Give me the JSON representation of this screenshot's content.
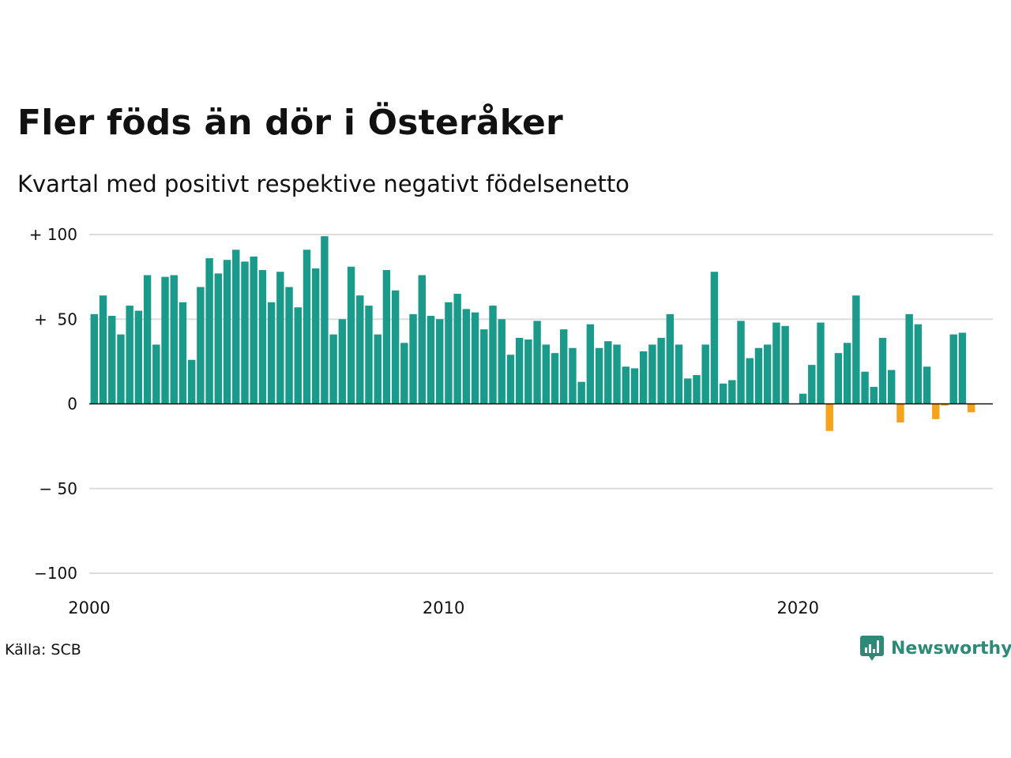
{
  "title": "Fler föds än dör i Österåker",
  "subtitle": "Kvartal med positivt respektive negativt födelsenetto",
  "source": "Källa: SCB",
  "brand": "Newsworthy",
  "colors": {
    "positive": "#1a9a8a",
    "negative": "#f5a31a",
    "grid": "#dddddd",
    "brand": "#2e8a78"
  },
  "chart_data": {
    "type": "bar",
    "title": "Fler föds än dör i Österåker",
    "subtitle": "Kvartal med positivt respektive negativt födelsenetto",
    "xlabel": "",
    "ylabel": "",
    "ylim": [
      -100,
      100
    ],
    "xlim": [
      2000,
      2025.5
    ],
    "grid": true,
    "y_ticks": [
      {
        "value": 100,
        "label": "+ 100"
      },
      {
        "value": 50,
        "label": "+  50"
      },
      {
        "value": 0,
        "label": "0"
      },
      {
        "value": -50,
        "label": "− 50"
      },
      {
        "value": -100,
        "label": "−100"
      }
    ],
    "x_ticks": [
      {
        "value": 2000,
        "label": "2000"
      },
      {
        "value": 2010,
        "label": "2010"
      },
      {
        "value": 2020,
        "label": "2020"
      }
    ],
    "start_year": 2000,
    "periods_per_year": 4,
    "values": [
      53,
      64,
      52,
      41,
      58,
      55,
      76,
      35,
      75,
      76,
      60,
      26,
      69,
      86,
      77,
      85,
      91,
      84,
      87,
      79,
      60,
      78,
      69,
      57,
      91,
      80,
      99,
      41,
      50,
      81,
      64,
      58,
      41,
      79,
      67,
      36,
      53,
      76,
      52,
      50,
      60,
      65,
      56,
      54,
      44,
      58,
      50,
      29,
      39,
      38,
      49,
      35,
      30,
      44,
      33,
      13,
      47,
      33,
      37,
      35,
      22,
      21,
      31,
      35,
      39,
      53,
      35,
      15,
      17,
      35,
      78,
      12,
      14,
      49,
      27,
      33,
      35,
      48,
      46,
      0,
      6,
      23,
      48,
      -16,
      30,
      36,
      64,
      19,
      10,
      39,
      20,
      -11,
      53,
      47,
      22,
      -9,
      -1,
      41,
      42,
      -5
    ]
  }
}
